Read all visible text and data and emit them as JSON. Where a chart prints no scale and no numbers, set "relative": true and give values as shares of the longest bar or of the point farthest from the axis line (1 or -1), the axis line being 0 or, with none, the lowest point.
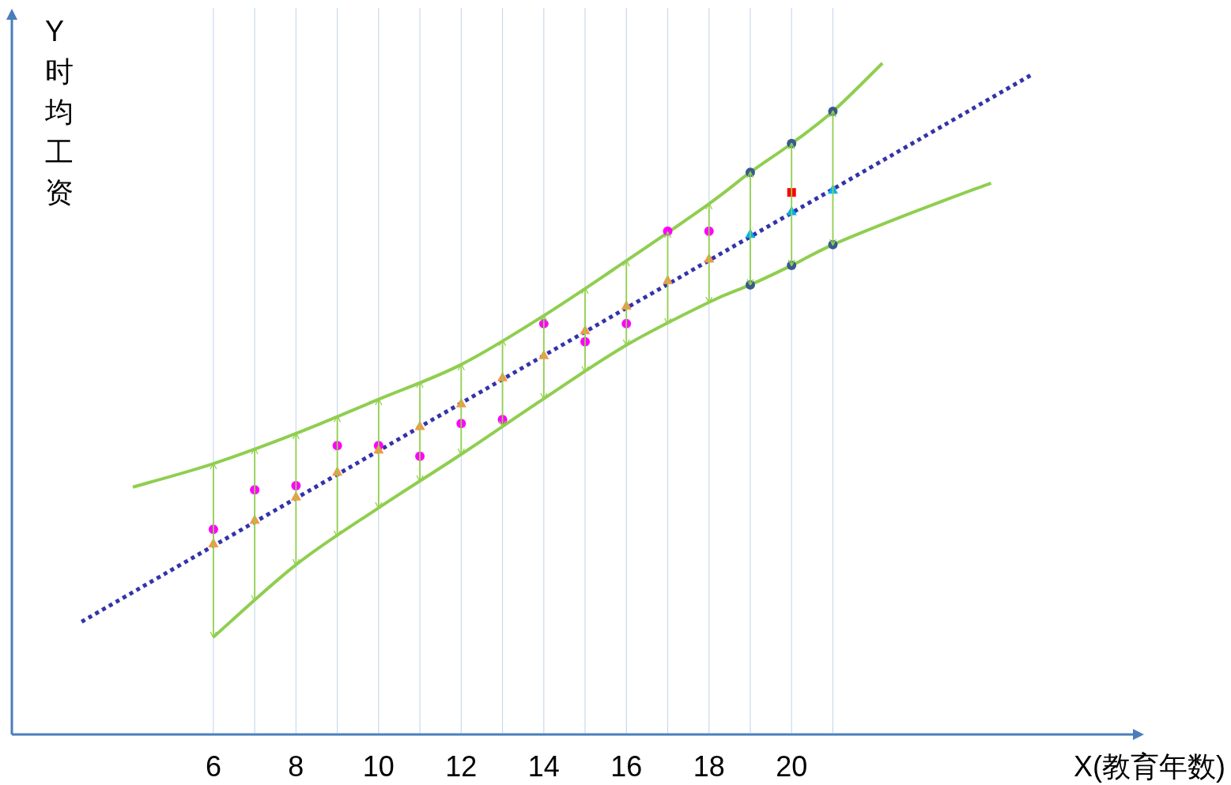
{
  "chart_data": {
    "type": "scatter",
    "xlabel": "X(教育年数)",
    "ylabel": "Y时均工资",
    "relative": true,
    "grid": "x",
    "xlim": [
      1.12,
      28.4
    ],
    "xticks": [
      6,
      {
        "value": 7,
        "label": null
      },
      8,
      {
        "value": 9,
        "label": null
      },
      10,
      {
        "value": 11,
        "label": null
      },
      12,
      {
        "value": 13,
        "label": null
      },
      14,
      {
        "value": 15,
        "label": null
      },
      16,
      {
        "value": 17,
        "label": null
      },
      18,
      {
        "value": 19,
        "label": null
      },
      20,
      {
        "value": 21,
        "label": null
      }
    ],
    "series": [
      {
        "type": "line",
        "color": "#3333aa",
        "line_style": "dotted",
        "marker": "none",
        "x": [
          2.81,
          25.79
        ],
        "values": [
          0.166,
          0.982
        ]
      },
      {
        "type": "line",
        "color": "#8fce4f",
        "line_style": "solid",
        "marker": "none",
        "x": [
          4.05,
          6,
          8,
          10,
          12,
          14,
          16,
          18,
          19,
          20,
          21,
          22.2
        ],
        "values": [
          0.367,
          0.402,
          0.447,
          0.498,
          0.55,
          0.623,
          0.705,
          0.79,
          0.837,
          0.88,
          0.928,
          1.0
        ]
      },
      {
        "type": "line",
        "color": "#8fce4f",
        "line_style": "solid",
        "marker": "none",
        "x": [
          6,
          8,
          10,
          12,
          14,
          16,
          18,
          19,
          20,
          21,
          22.8,
          24.83
        ],
        "values": [
          0.143,
          0.251,
          0.336,
          0.416,
          0.499,
          0.579,
          0.643,
          0.669,
          0.698,
          0.729,
          0.774,
          0.821
        ]
      },
      {
        "type": "scatter",
        "color": "#ff00ff",
        "marker": "circle",
        "x": [
          6,
          7,
          8,
          9,
          10,
          11,
          12,
          13,
          14,
          15,
          16,
          17,
          18
        ],
        "values": [
          0.304,
          0.363,
          0.369,
          0.429,
          0.429,
          0.413,
          0.462,
          0.468,
          0.611,
          0.584,
          0.611,
          0.749,
          0.749
        ]
      },
      {
        "type": "scatter",
        "color": "#f79646",
        "marker": "triangle",
        "x": [
          6,
          7,
          8,
          9,
          10,
          11,
          12,
          13,
          14,
          15,
          16,
          17,
          18
        ],
        "values": [
          0.283,
          0.318,
          0.353,
          0.39,
          0.423,
          0.458,
          0.492,
          0.531,
          0.564,
          0.601,
          0.638,
          0.676,
          0.708
        ]
      },
      {
        "type": "scatter",
        "color": "#00b0f0",
        "marker": "triangle",
        "x": [
          19,
          20,
          21
        ],
        "values": [
          0.745,
          0.779,
          0.811
        ]
      },
      {
        "type": "scatter",
        "color": "#3a5a8c",
        "marker": "circle",
        "x": [
          19,
          20,
          21,
          19,
          20,
          21
        ],
        "values": [
          0.837,
          0.88,
          0.928,
          0.669,
          0.698,
          0.729
        ]
      },
      {
        "type": "scatter",
        "color": "#ff0000",
        "marker": "square",
        "x": [
          20
        ],
        "values": [
          0.807
        ]
      }
    ]
  }
}
